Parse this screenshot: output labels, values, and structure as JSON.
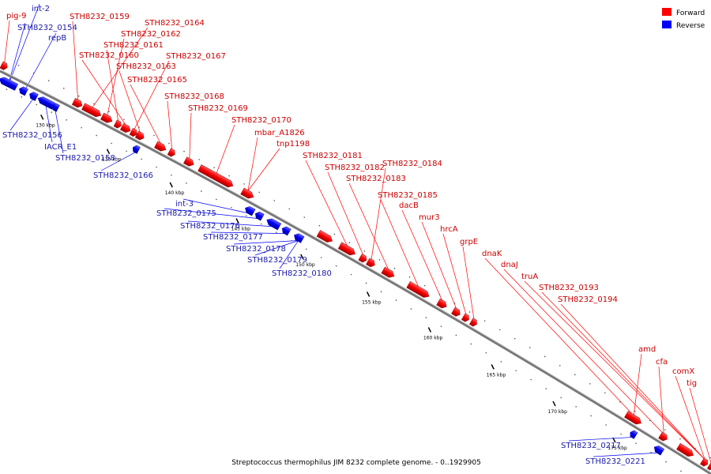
{
  "caption": "Streptococcus thermophilus JIM 8232 complete genome. - 0..1929905",
  "legend": [
    {
      "label": "Forward",
      "color": "#ff0000"
    },
    {
      "label": "Reverse",
      "color": "#0000ff"
    }
  ],
  "colors": {
    "forward": "#ff0000",
    "reverse": "#0000ff",
    "forward_text": "#cc0000",
    "reverse_text": "#1a1aaa",
    "backbone": "#666666"
  },
  "ticks": [
    "130 kbp",
    "135 kbp",
    "140 kbp",
    "145 kbp",
    "150 kbp",
    "155 kbp",
    "160 kbp",
    "165 kbp",
    "170 kbp",
    "175 kbp"
  ],
  "forward_labels": [
    "pig-9",
    "STH8232_0159",
    "STH8232_0164",
    "STH8232_0162",
    "STH8232_0161",
    "STH8232_0160",
    "STH8232_0167",
    "STH8232_0163",
    "STH8232_0165",
    "STH8232_0168",
    "STH8232_0169",
    "STH8232_0170",
    "mbar_A1826",
    "tnp1198",
    "STH8232_0181",
    "STH8232_0182",
    "STH8232_0184",
    "STH8232_0183",
    "STH8232_0185",
    "dacB",
    "mur3",
    "hrcA",
    "grpE",
    "dnaK",
    "dnaJ",
    "truA",
    "STH8232_0193",
    "STH8232_0194",
    "amd",
    "cfa",
    "comX",
    "tig"
  ],
  "reverse_labels": [
    "int-2",
    "STH8232_0154",
    "repB",
    "STH8232_0156",
    "IACR_E1",
    "STH8232_0158",
    "STH8232_0166",
    "int-3",
    "STH8232_0175",
    "STH8232_0176",
    "STH8232_0177",
    "STH8232_0178",
    "STH8232_0179",
    "STH8232_0180",
    "STH8232_0217",
    "STH8232_0221"
  ]
}
